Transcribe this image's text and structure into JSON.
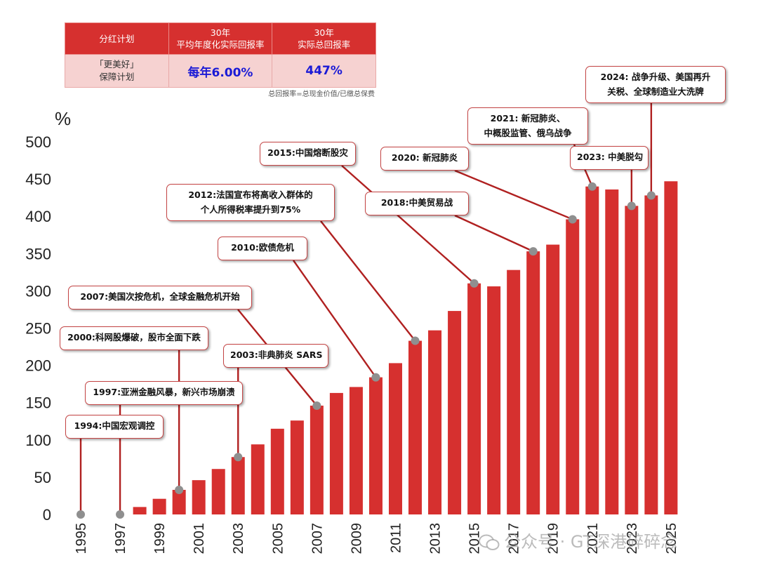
{
  "table": {
    "headers": [
      "分红计划",
      "30年",
      "平均年度化实际回报率",
      "30年",
      "实际总回报率"
    ],
    "plan_line1": "「更美好」",
    "plan_line2": "保障计划",
    "avg_return": "每年6.00%",
    "total_return": "447%",
    "note": "总回报率=总现金价值/已缴总保费"
  },
  "colors": {
    "bar": "#d6302f",
    "marker": "#8f8f8f",
    "leader": "#b02020"
  },
  "chart_data": {
    "type": "bar",
    "ylabel": "%",
    "ylim": [
      0,
      500
    ],
    "yticks": [
      "0",
      "50",
      "100",
      "150",
      "200",
      "250",
      "300",
      "350",
      "400",
      "450",
      "500"
    ],
    "xticks": [
      "1995",
      "1997",
      "1999",
      "2001",
      "2003",
      "2005",
      "2007",
      "2009",
      "2011",
      "2013",
      "2015",
      "2017",
      "2019",
      "2021",
      "2023",
      "2025"
    ],
    "years": [
      1995,
      1996,
      1997,
      1998,
      1999,
      2000,
      2001,
      2002,
      2003,
      2004,
      2005,
      2006,
      2007,
      2008,
      2009,
      2010,
      2011,
      2012,
      2013,
      2014,
      2015,
      2016,
      2017,
      2018,
      2019,
      2020,
      2021,
      2022,
      2023,
      2024,
      2025
    ],
    "values": [
      0,
      0,
      0,
      10,
      21,
      33,
      46,
      61,
      77,
      94,
      115,
      126,
      146,
      163,
      171,
      184,
      203,
      233,
      247,
      273,
      310,
      306,
      328,
      353,
      362,
      396,
      440,
      436,
      414,
      428,
      447
    ],
    "annotations": [
      {
        "year": 1995,
        "lines": [
          "1994:中国宏观调控"
        ]
      },
      {
        "year": 1997,
        "lines": [
          "1997:亚洲金融风暴，新兴市场崩溃"
        ]
      },
      {
        "year": 2000,
        "lines": [
          "2000:科网股爆破，股市全面下跌"
        ]
      },
      {
        "year": 2003,
        "lines": [
          "2003:非典肺炎 SARS"
        ]
      },
      {
        "year": 2007,
        "lines": [
          "2007:美国次按危机，全球金融危机开始"
        ]
      },
      {
        "year": 2010,
        "lines": [
          "2010:欧债危机"
        ]
      },
      {
        "year": 2012,
        "lines": [
          "2012:法国宣布将高收入群体的",
          "个人所得税率提升到75%"
        ]
      },
      {
        "year": 2015,
        "lines": [
          "2015:中国熔断股灾"
        ]
      },
      {
        "year": 2018,
        "lines": [
          "2018:中美贸易战"
        ]
      },
      {
        "year": 2020,
        "lines": [
          "2020:  新冠肺炎"
        ]
      },
      {
        "year": 2021,
        "lines": [
          "2021:  新冠肺炎、",
          "中概股监管、俄乌战争"
        ]
      },
      {
        "year": 2023,
        "lines": [
          "2023:  中美脱勾"
        ]
      },
      {
        "year": 2024,
        "lines": [
          "2024:  战争升级、美国再升",
          "关税、全球制造业大洗牌"
        ]
      }
    ]
  },
  "watermark": "公众号 · GT深港碎碎念"
}
